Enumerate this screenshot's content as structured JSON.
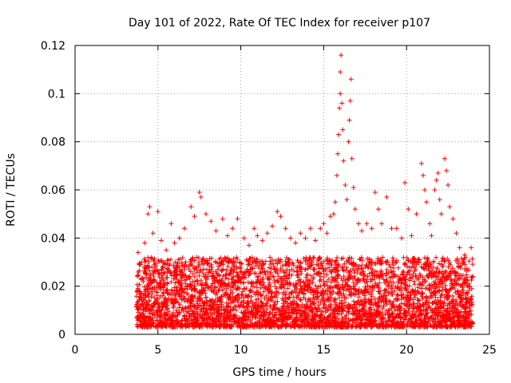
{
  "chart_data": {
    "type": "scatter",
    "title": "Day 101 of 2022, Rate Of TEC Index for receiver p107",
    "xlabel": "GPS time / hours",
    "ylabel": "ROTI / TECUs",
    "xlim": [
      0,
      25
    ],
    "ylim": [
      0,
      0.12
    ],
    "xticks": [
      0,
      5,
      10,
      15,
      20,
      25
    ],
    "xtick_labels": [
      "0",
      "5",
      "10",
      "15",
      "20",
      "25"
    ],
    "yticks": [
      0,
      0.02,
      0.04,
      0.06,
      0.08,
      0.1,
      0.12
    ],
    "ytick_labels": [
      "0",
      "0.02",
      "0.04",
      "0.06",
      "0.08",
      "0.1",
      "0.12"
    ],
    "grid": true,
    "marker": "+",
    "color": "#ff0000",
    "series": [
      {
        "points": [
          [
            3.8,
            0.034
          ],
          [
            4.0,
            0.03
          ],
          [
            4.2,
            0.038
          ],
          [
            4.4,
            0.05
          ],
          [
            4.5,
            0.053
          ],
          [
            4.7,
            0.042
          ],
          [
            5.0,
            0.051
          ],
          [
            5.2,
            0.039
          ],
          [
            5.5,
            0.035
          ],
          [
            5.8,
            0.046
          ],
          [
            6.0,
            0.038
          ],
          [
            6.3,
            0.04
          ],
          [
            6.6,
            0.044
          ],
          [
            7.0,
            0.053
          ],
          [
            7.2,
            0.049
          ],
          [
            7.5,
            0.059
          ],
          [
            7.6,
            0.057
          ],
          [
            7.9,
            0.05
          ],
          [
            8.2,
            0.047
          ],
          [
            8.5,
            0.043
          ],
          [
            8.9,
            0.048
          ],
          [
            9.2,
            0.041
          ],
          [
            9.5,
            0.044
          ],
          [
            9.8,
            0.048
          ],
          [
            10.2,
            0.04
          ],
          [
            10.5,
            0.037
          ],
          [
            10.8,
            0.044
          ],
          [
            11.0,
            0.041
          ],
          [
            11.3,
            0.039
          ],
          [
            11.6,
            0.042
          ],
          [
            11.9,
            0.045
          ],
          [
            12.2,
            0.051
          ],
          [
            12.4,
            0.049
          ],
          [
            12.7,
            0.044
          ],
          [
            13.0,
            0.04
          ],
          [
            13.3,
            0.038
          ],
          [
            13.6,
            0.042
          ],
          [
            13.9,
            0.04
          ],
          [
            14.2,
            0.044
          ],
          [
            14.5,
            0.039
          ],
          [
            14.8,
            0.044
          ],
          [
            15.0,
            0.046
          ],
          [
            15.2,
            0.042
          ],
          [
            15.4,
            0.049
          ],
          [
            15.6,
            0.05
          ],
          [
            15.7,
            0.055
          ],
          [
            15.8,
            0.066
          ],
          [
            15.85,
            0.075
          ],
          [
            15.9,
            0.083
          ],
          [
            15.95,
            0.094
          ],
          [
            16.0,
            0.1
          ],
          [
            16.0,
            0.109
          ],
          [
            16.05,
            0.116
          ],
          [
            16.1,
            0.096
          ],
          [
            16.15,
            0.085
          ],
          [
            16.2,
            0.072
          ],
          [
            16.3,
            0.062
          ],
          [
            16.4,
            0.056
          ],
          [
            16.5,
            0.08
          ],
          [
            16.55,
            0.089
          ],
          [
            16.6,
            0.097
          ],
          [
            16.65,
            0.106
          ],
          [
            16.7,
            0.073
          ],
          [
            16.8,
            0.061
          ],
          [
            16.9,
            0.052
          ],
          [
            17.1,
            0.046
          ],
          [
            17.3,
            0.043
          ],
          [
            17.6,
            0.046
          ],
          [
            17.9,
            0.044
          ],
          [
            18.1,
            0.059
          ],
          [
            18.3,
            0.052
          ],
          [
            18.5,
            0.046
          ],
          [
            18.8,
            0.057
          ],
          [
            19.1,
            0.044
          ],
          [
            19.4,
            0.044
          ],
          [
            19.7,
            0.04
          ],
          [
            19.9,
            0.063
          ],
          [
            20.1,
            0.052
          ],
          [
            20.3,
            0.041
          ],
          [
            20.6,
            0.05
          ],
          [
            20.9,
            0.071
          ],
          [
            21.0,
            0.066
          ],
          [
            21.1,
            0.06
          ],
          [
            21.2,
            0.055
          ],
          [
            21.4,
            0.046
          ],
          [
            21.5,
            0.041
          ],
          [
            21.7,
            0.06
          ],
          [
            21.8,
            0.064
          ],
          [
            21.9,
            0.067
          ],
          [
            22.0,
            0.056
          ],
          [
            22.1,
            0.05
          ],
          [
            22.3,
            0.073
          ],
          [
            22.4,
            0.068
          ],
          [
            22.5,
            0.062
          ],
          [
            22.6,
            0.053
          ],
          [
            22.8,
            0.048
          ],
          [
            23.0,
            0.042
          ],
          [
            23.2,
            0.036
          ],
          [
            23.5,
            0.033
          ],
          [
            23.9,
            0.036
          ]
        ]
      }
    ],
    "density_band": [
      {
        "x_start": 3.7,
        "x_end": 24.0,
        "y_low": 0.003,
        "y_high": 0.032,
        "count": 4200
      }
    ]
  }
}
